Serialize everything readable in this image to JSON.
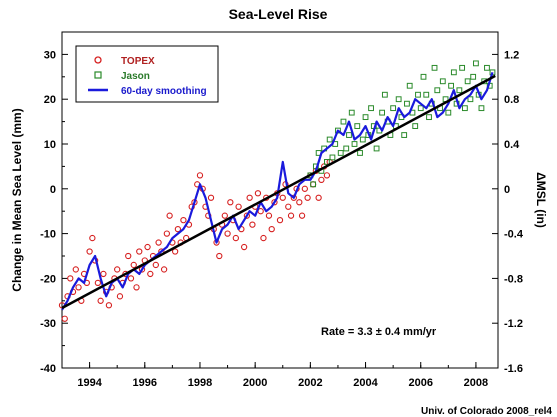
{
  "chart_data": {
    "type": "scatter",
    "title": "Sea-Level Rise",
    "xlabel": "",
    "ylabel": "Change in Mean Sea Level (mm)",
    "ylabel_right": "ΔMSL (in)",
    "xlim": [
      1993.0,
      2008.8
    ],
    "ylim": [
      -40,
      35
    ],
    "ylim_right": [
      -1.6,
      1.4
    ],
    "x_ticks": [
      "1994",
      "1996",
      "1998",
      "2000",
      "2002",
      "2004",
      "2006",
      "2008"
    ],
    "y_ticks": [
      "-40",
      "-30",
      "-20",
      "-10",
      "0",
      "10",
      "20",
      "30"
    ],
    "y_ticks_right": [
      "-1.6",
      "-1.2",
      "-0.8",
      "-0.4",
      "0",
      "0.4",
      "0.8",
      "1.2"
    ],
    "legend_position": "top-left",
    "grid": false,
    "annotation": "Rate = 3.3 ± 0.4 mm/yr",
    "credit": "Univ. of Colorado 2008_rel4",
    "series": [
      {
        "name": "TOPEX",
        "marker": "open-circle",
        "color": "#d62020",
        "x": [
          1993.0,
          1993.1,
          1993.2,
          1993.3,
          1993.4,
          1993.5,
          1993.6,
          1993.7,
          1993.8,
          1993.9,
          1994.0,
          1994.1,
          1994.2,
          1994.3,
          1994.4,
          1994.5,
          1994.6,
          1994.7,
          1994.8,
          1994.9,
          1995.0,
          1995.1,
          1995.2,
          1995.3,
          1995.4,
          1995.5,
          1995.6,
          1995.7,
          1995.8,
          1995.9,
          1996.0,
          1996.1,
          1996.2,
          1996.3,
          1996.4,
          1996.5,
          1996.6,
          1996.7,
          1996.8,
          1996.9,
          1997.0,
          1997.1,
          1997.2,
          1997.3,
          1997.4,
          1997.5,
          1997.6,
          1997.7,
          1997.8,
          1997.9,
          1998.0,
          1998.1,
          1998.2,
          1998.3,
          1998.4,
          1998.5,
          1998.6,
          1998.7,
          1998.8,
          1998.9,
          1999.0,
          1999.1,
          1999.2,
          1999.3,
          1999.4,
          1999.5,
          1999.6,
          1999.7,
          1999.8,
          1999.9,
          2000.0,
          2000.1,
          2000.2,
          2000.3,
          2000.4,
          2000.5,
          2000.6,
          2000.7,
          2000.8,
          2000.9,
          2001.0,
          2001.1,
          2001.2,
          2001.3,
          2001.4,
          2001.5,
          2001.6,
          2001.7,
          2001.8,
          2001.9,
          2002.0,
          2002.1,
          2002.2,
          2002.3,
          2002.4,
          2002.5,
          2002.6,
          2002.7
        ],
        "y": [
          -26,
          -29,
          -24,
          -20,
          -23,
          -18,
          -22,
          -25,
          -19,
          -21,
          -14,
          -11,
          -16,
          -21,
          -25,
          -19,
          -23,
          -26,
          -22,
          -20,
          -18,
          -24,
          -21,
          -19,
          -15,
          -20,
          -17,
          -22,
          -14,
          -18,
          -16,
          -13,
          -19,
          -15,
          -17,
          -12,
          -14,
          -18,
          -10,
          -6,
          -12,
          -14,
          -9,
          -12,
          -7,
          -11,
          -8,
          -4,
          -3,
          1,
          3,
          0,
          -4,
          -6,
          -2,
          -9,
          -12,
          -15,
          -8,
          -6,
          -10,
          -3,
          -7,
          -11,
          -4,
          -9,
          -13,
          -6,
          -2,
          -8,
          -4,
          -1,
          -5,
          -11,
          -2,
          -6,
          -9,
          -3,
          -1,
          -7,
          -2,
          1,
          -4,
          -6,
          -2,
          0,
          -3,
          -6,
          0,
          -2,
          3,
          1,
          4,
          -2,
          2,
          5,
          3,
          6
        ]
      },
      {
        "name": "Jason",
        "marker": "open-square",
        "color": "#2a8a2a",
        "x": [
          2002.0,
          2002.1,
          2002.2,
          2002.3,
          2002.4,
          2002.5,
          2002.6,
          2002.7,
          2002.8,
          2002.9,
          2003.0,
          2003.1,
          2003.2,
          2003.3,
          2003.4,
          2003.5,
          2003.6,
          2003.7,
          2003.8,
          2003.9,
          2004.0,
          2004.1,
          2004.2,
          2004.3,
          2004.4,
          2004.5,
          2004.6,
          2004.7,
          2004.8,
          2004.9,
          2005.0,
          2005.1,
          2005.2,
          2005.3,
          2005.4,
          2005.5,
          2005.6,
          2005.7,
          2005.8,
          2005.9,
          2006.0,
          2006.1,
          2006.2,
          2006.3,
          2006.4,
          2006.5,
          2006.6,
          2006.7,
          2006.8,
          2006.9,
          2007.0,
          2007.1,
          2007.2,
          2007.3,
          2007.4,
          2007.5,
          2007.6,
          2007.7,
          2007.8,
          2007.9,
          2008.0,
          2008.1,
          2008.2,
          2008.3,
          2008.4,
          2008.5,
          2008.6
        ],
        "y": [
          3,
          1,
          5,
          8,
          4,
          9,
          6,
          11,
          7,
          10,
          13,
          8,
          15,
          9,
          12,
          17,
          10,
          14,
          8,
          11,
          16,
          12,
          18,
          14,
          9,
          13,
          17,
          21,
          15,
          12,
          18,
          14,
          20,
          16,
          12,
          19,
          23,
          17,
          14,
          21,
          18,
          25,
          21,
          16,
          19,
          27,
          22,
          18,
          24,
          20,
          17,
          23,
          26,
          19,
          22,
          27,
          18,
          24,
          20,
          25,
          28,
          21,
          18,
          24,
          27,
          23,
          26
        ]
      },
      {
        "name": "60-day smoothing",
        "marker": "line",
        "color": "#1a1adc",
        "x": [
          1993.0,
          1993.2,
          1993.4,
          1993.6,
          1993.8,
          1994.0,
          1994.2,
          1994.4,
          1994.6,
          1994.8,
          1995.0,
          1995.2,
          1995.4,
          1995.6,
          1995.8,
          1996.0,
          1996.2,
          1996.4,
          1996.6,
          1996.8,
          1997.0,
          1997.2,
          1997.4,
          1997.6,
          1997.8,
          1998.0,
          1998.2,
          1998.4,
          1998.6,
          1998.8,
          1999.0,
          1999.2,
          1999.4,
          1999.6,
          1999.8,
          2000.0,
          2000.2,
          2000.4,
          2000.6,
          2000.8,
          2001.0,
          2001.2,
          2001.4,
          2001.6,
          2001.8,
          2002.0,
          2002.2,
          2002.4,
          2002.6,
          2002.8,
          2003.0,
          2003.2,
          2003.4,
          2003.6,
          2003.8,
          2004.0,
          2004.2,
          2004.4,
          2004.6,
          2004.8,
          2005.0,
          2005.2,
          2005.4,
          2005.6,
          2005.8,
          2006.0,
          2006.2,
          2006.4,
          2006.6,
          2006.8,
          2007.0,
          2007.2,
          2007.4,
          2007.6,
          2007.8,
          2008.0,
          2008.2,
          2008.4,
          2008.6
        ],
        "y": [
          -27,
          -25,
          -22,
          -20,
          -21,
          -17,
          -15,
          -20,
          -24,
          -21,
          -20,
          -22,
          -19,
          -18,
          -19,
          -17,
          -16,
          -15,
          -14,
          -13,
          -11,
          -10,
          -9,
          -7,
          -3,
          1,
          -2,
          -7,
          -12,
          -9,
          -8,
          -6,
          -9,
          -7,
          -5,
          -6,
          -3,
          -5,
          -4,
          -2,
          6,
          -1,
          -2,
          1,
          2,
          2,
          4,
          8,
          9,
          10,
          13,
          12,
          15,
          11,
          12,
          14,
          11,
          15,
          13,
          16,
          14,
          18,
          16,
          17,
          20,
          19,
          18,
          20,
          16,
          17,
          19,
          22,
          18,
          20,
          21,
          23,
          20,
          22,
          26
        ]
      },
      {
        "name": "",
        "marker": "trend-line",
        "color": "#000000",
        "x": [
          1993.0,
          2008.7
        ],
        "y": [
          -26.6,
          25.2
        ]
      }
    ]
  }
}
